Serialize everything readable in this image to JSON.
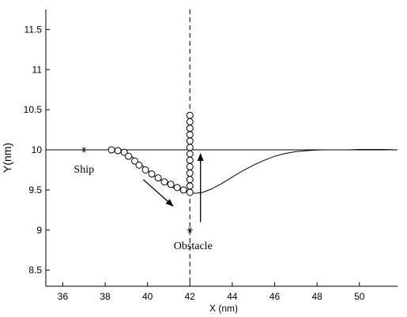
{
  "chart_data": {
    "type": "line",
    "xlabel": "X (nm)",
    "ylabel": "Y(nm)",
    "xlim": [
      35.2,
      51.8
    ],
    "ylim": [
      8.3,
      11.75
    ],
    "xticks": [
      36,
      38,
      40,
      42,
      44,
      46,
      48,
      50
    ],
    "yticks": [
      8.5,
      9,
      9.5,
      10,
      10.5,
      11,
      11.5
    ],
    "grid": false,
    "reference_line": {
      "y": 10
    },
    "obstacle_line": {
      "x": 42
    },
    "series": [
      {
        "style": "smooth-curve",
        "x": [
          38.3,
          38.8,
          39.2,
          39.6,
          40.0,
          40.4,
          40.8,
          41.2,
          41.6,
          41.9,
          42.1,
          42.3,
          42.6,
          43.0,
          43.5,
          44.0,
          44.5,
          45.0,
          45.5,
          46.0,
          46.5,
          47.0,
          47.5,
          48.0,
          48.5,
          49.0,
          49.5,
          50.0,
          51.0,
          51.8
        ],
        "y": [
          10.0,
          9.98,
          9.93,
          9.84,
          9.75,
          9.66,
          9.59,
          9.53,
          9.49,
          9.47,
          9.46,
          9.46,
          9.47,
          9.51,
          9.58,
          9.66,
          9.74,
          9.81,
          9.87,
          9.92,
          9.955,
          9.978,
          9.99,
          9.997,
          10.0,
          10.0,
          10.0,
          10.005,
          10.005,
          10.0
        ]
      },
      {
        "style": "circle-markers",
        "x": [
          38.3,
          38.6,
          38.9,
          39.1,
          39.4,
          39.6,
          39.9,
          40.2,
          40.5,
          40.8,
          41.1,
          41.4,
          41.7
        ],
        "y": [
          10.0,
          9.99,
          9.97,
          9.92,
          9.86,
          9.81,
          9.75,
          9.7,
          9.65,
          9.6,
          9.57,
          9.53,
          9.5
        ]
      },
      {
        "style": "circle-markers",
        "x": [
          42,
          42,
          42,
          42,
          42,
          42,
          42,
          42,
          42,
          42,
          42,
          42,
          42
        ],
        "y": [
          9.47,
          9.55,
          9.63,
          9.71,
          9.79,
          9.87,
          9.95,
          10.03,
          10.11,
          10.19,
          10.27,
          10.35,
          10.43
        ]
      }
    ],
    "points": [
      {
        "label": "Ship",
        "x": 37,
        "y": 10
      },
      {
        "label": "Obstacle",
        "x": 42,
        "y": 9
      }
    ],
    "arrows": [
      {
        "from": [
          39.8,
          9.63
        ],
        "to": [
          41.2,
          9.3
        ]
      },
      {
        "from": [
          42.5,
          9.1
        ],
        "to": [
          42.5,
          9.95
        ]
      }
    ]
  }
}
